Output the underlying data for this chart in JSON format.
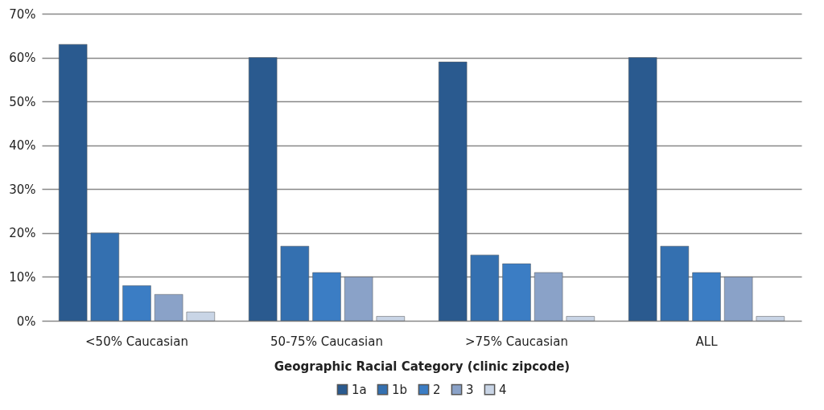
{
  "chart_data": {
    "type": "bar",
    "xlabel": "Geographic Racial Category (clinic zipcode)",
    "categories": [
      "<50% Caucasian",
      "50-75% Caucasian",
      ">75% Caucasian",
      "ALL"
    ],
    "series": [
      {
        "name": "1a",
        "color": "#2a5a8f",
        "values": [
          63,
          60,
          59,
          60
        ]
      },
      {
        "name": "1b",
        "color": "#3470b0",
        "values": [
          20,
          17,
          15,
          17
        ]
      },
      {
        "name": "2",
        "color": "#3b7dc4",
        "values": [
          8,
          11,
          13,
          11
        ]
      },
      {
        "name": "3",
        "color": "#8aa2c8",
        "values": [
          6,
          10,
          11,
          10
        ]
      },
      {
        "name": "4",
        "color": "#c9d5e6",
        "values": [
          2,
          1,
          1,
          1
        ]
      }
    ],
    "ylim": [
      0,
      70
    ],
    "yticks": [
      {
        "value": 0,
        "label": "0%"
      },
      {
        "value": 10,
        "label": "10%"
      },
      {
        "value": 20,
        "label": "20%"
      },
      {
        "value": 30,
        "label": "30%"
      },
      {
        "value": 40,
        "label": "40%"
      },
      {
        "value": 50,
        "label": "50%"
      },
      {
        "value": 60,
        "label": "60%"
      },
      {
        "value": 70,
        "label": "70%"
      }
    ],
    "grid": "y",
    "legend": "bottom"
  }
}
